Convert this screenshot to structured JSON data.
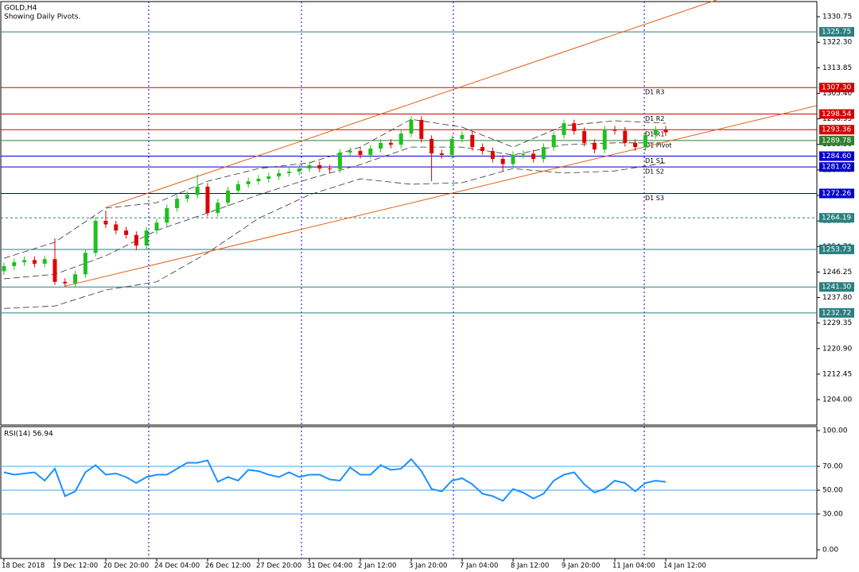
{
  "chart_data": [
    {
      "type": "candlestick",
      "title": "GOLD,H4",
      "subtitle": "Showing Daily Pivots.",
      "categories": [
        "18 Dec 2018",
        null,
        null,
        null,
        null,
        "19 Dec 12:00",
        null,
        null,
        null,
        null,
        "20 Dec 20:00",
        null,
        null,
        null,
        null,
        "24 Dec 04:00",
        null,
        null,
        null,
        null,
        "26 Dec 12:00",
        null,
        null,
        null,
        null,
        "27 Dec 20:00",
        null,
        null,
        null,
        null,
        "31 Dec 04:00",
        null,
        null,
        null,
        null,
        "2 Jan 12:00",
        null,
        null,
        null,
        null,
        "3 Jan 20:00",
        null,
        null,
        null,
        null,
        "7 Jan 04:00",
        null,
        null,
        null,
        null,
        "8 Jan 12:00",
        null,
        null,
        null,
        null,
        "9 Jan 20:00",
        null,
        null,
        null,
        null,
        "11 Jan 04:00",
        null,
        null,
        null,
        null,
        "14 Jan 12:00"
      ],
      "open": [
        1246.5,
        1248.2,
        1249.5,
        1250.2,
        1249.0,
        1250.5,
        1243.0,
        1242.5,
        1245.5,
        1252.6,
        1263.2,
        1262.0,
        1260.0,
        1258.5,
        1255.0,
        1260.0,
        1262.6,
        1267.4,
        1270.5,
        1271.8,
        1274.5,
        1265.8,
        1269.2,
        1273.2,
        1275.3,
        1276.3,
        1277.1,
        1277.9,
        1279.0,
        1279.5,
        1280.5,
        1281.6,
        1280.5,
        1280.3,
        1285.8,
        1286.3,
        1285.0,
        1287.1,
        1289.0,
        1288.4,
        1292.1,
        1296.6,
        1290.3,
        1285.5,
        1285.0,
        1290.3,
        1291.6,
        1287.6,
        1286.3,
        1283.7,
        1282.0,
        1285.0,
        1285.4,
        1283.7,
        1287.6,
        1291.6,
        1295.5,
        1292.9,
        1289.0,
        1286.8,
        1293.4,
        1293.0,
        1289.0,
        1287.6,
        1291.6,
        1293.4
      ],
      "high": [
        1249.4,
        1250.7,
        1251.4,
        1251.4,
        1251.7,
        1257.4,
        1244.2,
        1246.7,
        1253.8,
        1264.4,
        1266.6,
        1263.2,
        1261.2,
        1259.7,
        1261.2,
        1263.8,
        1268.6,
        1271.7,
        1273.0,
        1278.5,
        1275.7,
        1270.4,
        1274.4,
        1276.5,
        1277.5,
        1278.3,
        1279.1,
        1280.2,
        1280.7,
        1281.7,
        1282.8,
        1282.8,
        1281.7,
        1287.0,
        1287.5,
        1287.5,
        1288.3,
        1290.2,
        1290.2,
        1293.3,
        1297.8,
        1297.8,
        1291.5,
        1286.7,
        1291.5,
        1292.8,
        1292.8,
        1288.8,
        1287.5,
        1284.9,
        1286.2,
        1286.6,
        1286.6,
        1288.8,
        1292.8,
        1296.7,
        1296.7,
        1294.1,
        1290.2,
        1294.6,
        1294.6,
        1294.2,
        1290.2,
        1292.8,
        1294.6,
        1294.6
      ],
      "low": [
        1245.3,
        1247.0,
        1248.3,
        1247.8,
        1247.8,
        1242.0,
        1241.3,
        1241.3,
        1244.3,
        1251.4,
        1260.8,
        1258.8,
        1257.3,
        1253.5,
        1253.8,
        1258.8,
        1261.4,
        1266.2,
        1269.3,
        1270.6,
        1264.6,
        1264.6,
        1268.0,
        1272.0,
        1274.1,
        1275.1,
        1275.9,
        1276.7,
        1277.8,
        1278.3,
        1279.3,
        1279.3,
        1279.1,
        1279.1,
        1284.6,
        1283.8,
        1283.8,
        1285.9,
        1287.2,
        1287.2,
        1290.9,
        1289.1,
        1276.3,
        1283.8,
        1283.8,
        1289.1,
        1286.4,
        1285.1,
        1282.5,
        1279.7,
        1280.8,
        1283.8,
        1282.5,
        1282.5,
        1286.4,
        1290.4,
        1291.7,
        1287.8,
        1285.6,
        1285.6,
        1291.8,
        1287.8,
        1286.4,
        1286.4,
        1290.4,
        1291.3
      ],
      "close": [
        1248.2,
        1249.5,
        1250.2,
        1249.0,
        1250.5,
        1243.0,
        1242.5,
        1245.5,
        1252.6,
        1263.2,
        1262.0,
        1260.0,
        1258.5,
        1255.0,
        1260.0,
        1262.6,
        1267.4,
        1270.5,
        1271.8,
        1274.5,
        1265.8,
        1269.2,
        1273.2,
        1275.3,
        1276.3,
        1277.1,
        1277.9,
        1279.0,
        1279.5,
        1280.5,
        1281.6,
        1280.5,
        1280.3,
        1285.8,
        1286.3,
        1285.0,
        1287.1,
        1289.0,
        1288.4,
        1292.1,
        1296.6,
        1290.3,
        1285.5,
        1285.0,
        1290.3,
        1291.6,
        1287.6,
        1286.3,
        1283.7,
        1282.0,
        1285.0,
        1285.4,
        1283.7,
        1287.6,
        1291.6,
        1295.5,
        1292.9,
        1289.0,
        1286.8,
        1293.4,
        1293.0,
        1289.0,
        1287.6,
        1291.6,
        1293.4,
        1292.5
      ],
      "up_color": "#1fc01f",
      "down_color": "#e00000",
      "bands": {
        "color": "#333333",
        "x": [
          0,
          5,
          10,
          15,
          20,
          25,
          30,
          35,
          40,
          45,
          50,
          55,
          60,
          65
        ],
        "upper": [
          1250.8,
          1256.1,
          1267.4,
          1269.2,
          1276.3,
          1280.5,
          1282.4,
          1287.6,
          1296.8,
          1294.2,
          1287.6,
          1294.7,
          1296.3,
          1295.5
        ],
        "middle": [
          1244.0,
          1245.5,
          1251.6,
          1260.0,
          1265.8,
          1271.8,
          1277.1,
          1281.8,
          1287.6,
          1287.6,
          1285.0,
          1288.4,
          1289.0,
          1289.0
        ],
        "lower": [
          1234.2,
          1235.0,
          1240.3,
          1243.0,
          1252.6,
          1264.0,
          1271.8,
          1277.1,
          1275.3,
          1275.8,
          1280.5,
          1279.0,
          1279.7,
          1282.4
        ]
      },
      "trendlines": [
        {
          "color": "#e0601a",
          "x": [
            10,
            70
          ],
          "values": [
            1267.6,
            1336.3
          ]
        },
        {
          "color": "#e0601a",
          "x": [
            6,
            79.8
          ],
          "values": [
            1241.6,
            1301.3
          ]
        }
      ],
      "levels": [
        {
          "value": 1325.75,
          "color": "#2a7f7f"
        },
        {
          "value": 1307.3,
          "label": "1307.30",
          "color": "#d40000",
          "name": "D1 R3"
        },
        {
          "value": 1298.54,
          "color": "#d40000",
          "name": "D1 R2"
        },
        {
          "value": 1293.36,
          "color": "#d40000",
          "name": "D1 R1"
        },
        {
          "value": 1289.78,
          "color": "#2f7f2f",
          "name": "D1 Pivot"
        },
        {
          "value": 1284.6,
          "label": "1284.60",
          "color": "#0000c8",
          "name": "D1 S1"
        },
        {
          "value": 1281.02,
          "color": "#0000c8",
          "name": "D1 S2"
        },
        {
          "value": 1272.26,
          "color": "#0000c8",
          "name": "D1 S3"
        },
        {
          "value": 1264.19,
          "color": "#2a7f7f",
          "dashed": true
        },
        {
          "value": 1253.73,
          "color": "#2a7f7f"
        },
        {
          "value": 1241.3,
          "label": "1241.30",
          "color": "#2a7f7f"
        },
        {
          "value": 1232.72,
          "color": "#2a7f7f"
        }
      ],
      "xlim": [
        -0.31,
        79.84
      ],
      "ylim": [
        1195.6,
        1335.5
      ],
      "yticks": [
        1330.75,
        {
          "value": 1322.3,
          "label": "1322.30"
        },
        1313.85,
        {
          "value": 1305.4,
          "label": "1305.40"
        },
        1296.95,
        {
          "value": 1288.5,
          "label": "1288.50"
        },
        1280.05,
        {
          "value": 1271.6,
          "label": "1271.60"
        },
        1263.15,
        {
          "value": 1254.7,
          "label": "1254.70"
        },
        1246.25,
        {
          "value": 1237.8,
          "label": "1237.80"
        },
        1229.35,
        {
          "value": 1220.9,
          "label": "1220.90"
        },
        1212.45,
        {
          "value": 1204,
          "label": "1204.00"
        }
      ]
    },
    {
      "type": "line",
      "title": "RSI(14) 56.94",
      "color": "#1e90ff",
      "values": [
        65,
        63,
        64,
        65,
        58,
        68,
        45,
        49,
        65,
        71,
        63,
        64,
        61,
        56,
        61,
        63,
        63,
        68,
        73,
        73,
        75,
        57,
        61,
        58,
        67,
        66,
        63,
        61,
        65,
        61,
        63,
        63,
        59,
        58,
        69,
        63,
        63,
        71,
        67,
        68,
        76,
        66,
        51,
        49,
        58,
        60,
        55,
        47,
        45,
        41,
        51,
        48,
        43,
        47,
        58,
        63,
        65,
        55,
        48,
        51,
        58,
        56,
        49,
        56,
        58,
        56.94
      ],
      "levels": [
        70,
        50,
        30
      ],
      "level_color": "#3fa9f5",
      "xlim": [
        -0.31,
        79.84
      ],
      "ylim": [
        -7.3,
        103.3
      ],
      "yticks": [
        {
          "value": 100,
          "label": "100.00"
        },
        {
          "value": 70,
          "label": "70.00"
        },
        {
          "value": 50,
          "label": "50.00"
        },
        {
          "value": 30,
          "label": "30.00"
        },
        {
          "value": 0,
          "label": "0.00"
        }
      ]
    }
  ]
}
